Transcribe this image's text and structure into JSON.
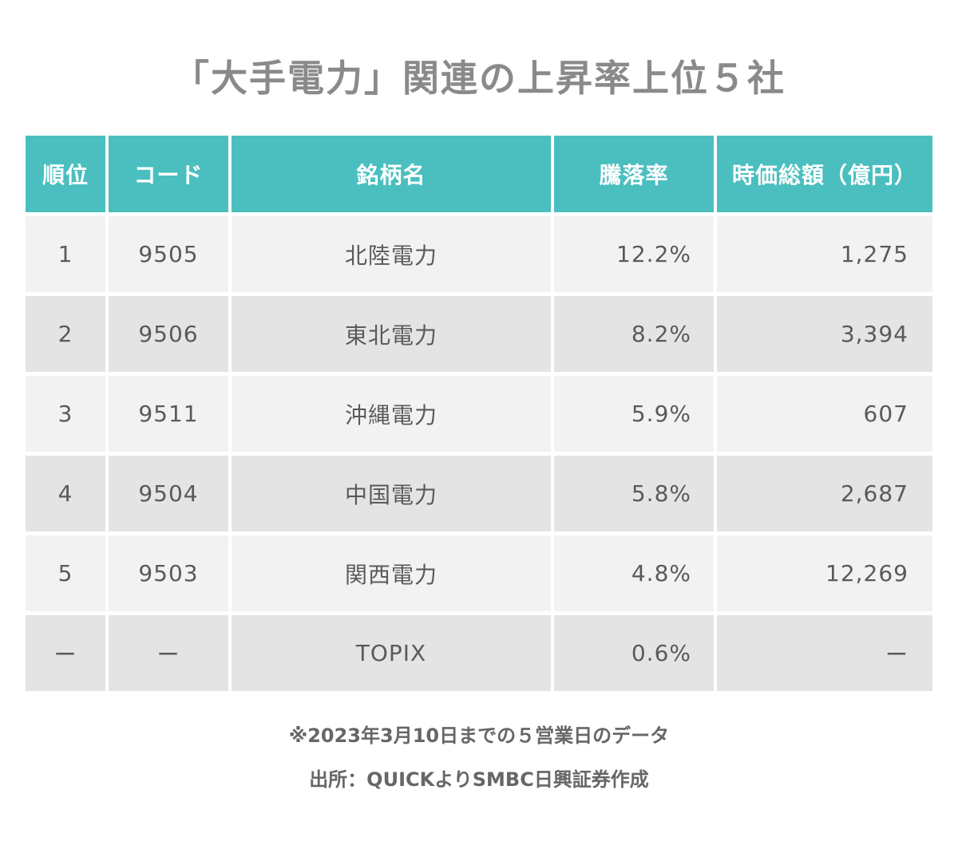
{
  "title": "「大手電力」関連の上昇率上位５社",
  "chart_data": {
    "type": "table",
    "title": "「大手電力」関連の上昇率上位５社",
    "columns": [
      "順位",
      "コード",
      "銘柄名",
      "騰落率",
      "時価総額（億円）"
    ],
    "rows": [
      {
        "rank": "1",
        "code": "9505",
        "name": "北陸電力",
        "change": "12.2%",
        "market_cap": "1,275"
      },
      {
        "rank": "2",
        "code": "9506",
        "name": "東北電力",
        "change": "8.2%",
        "market_cap": "3,394"
      },
      {
        "rank": "3",
        "code": "9511",
        "name": "沖縄電力",
        "change": "5.9%",
        "market_cap": "607"
      },
      {
        "rank": "4",
        "code": "9504",
        "name": "中国電力",
        "change": "5.8%",
        "market_cap": "2,687"
      },
      {
        "rank": "5",
        "code": "9503",
        "name": "関西電力",
        "change": "4.8%",
        "market_cap": "12,269"
      },
      {
        "rank": "ー",
        "code": "ー",
        "name": "TOPIX",
        "change": "0.6%",
        "market_cap": "ー"
      }
    ]
  },
  "footnotes": {
    "note": "※2023年3月10日までの５営業日のデータ",
    "source": "出所：QUICKよりSMBC日興証券作成"
  },
  "colors": {
    "header_bg": "#4bbfbf",
    "row_light": "#f2f2f2",
    "row_dark": "#e4e4e4",
    "title": "#8a8a8a"
  }
}
